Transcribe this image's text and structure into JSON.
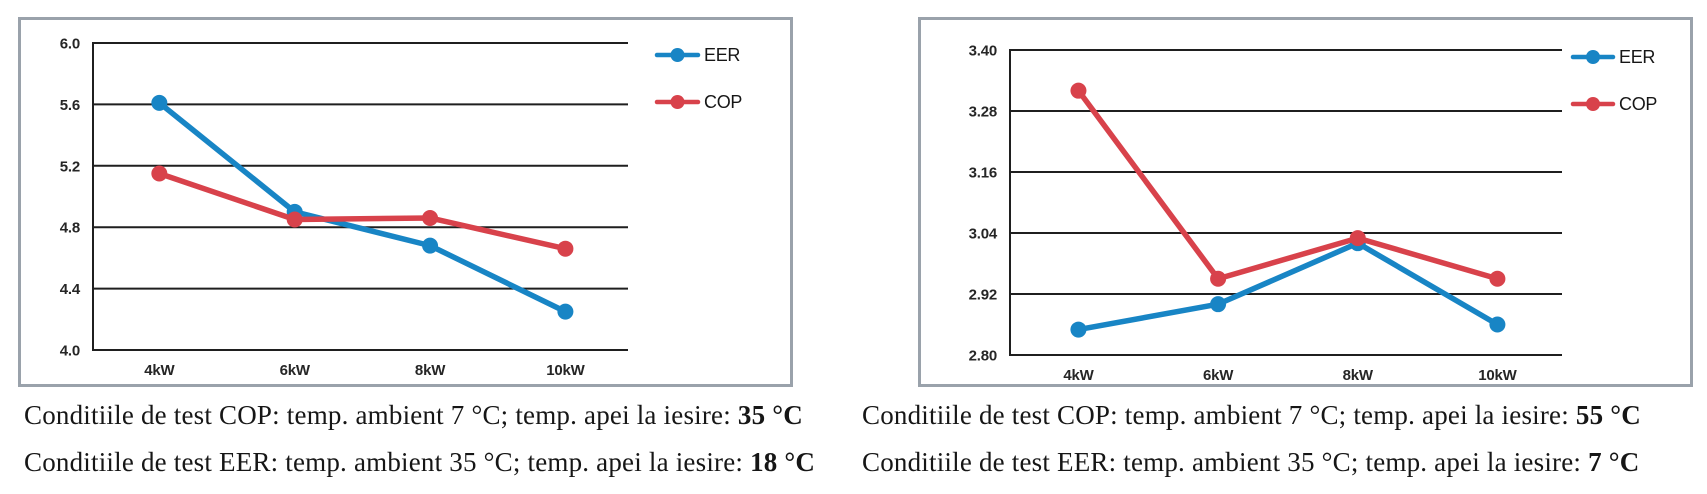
{
  "figure": {
    "background": "#ffffff",
    "panel_border_color": "#9aa2ab"
  },
  "colors": {
    "eer_series": "#1885c5",
    "cop_series": "#d8424b",
    "grid_line": "#1f1f1f",
    "tick_text": "#262626",
    "caption_text": "#161616"
  },
  "chart_data": [
    {
      "type": "line",
      "title": "",
      "xlabel": "",
      "ylabel": "",
      "categories": [
        "4kW",
        "6kW",
        "8kW",
        "10kW"
      ],
      "ylim": [
        4.0,
        6.0
      ],
      "y_tick_labels": [
        "6.0",
        "5.6",
        "5.2",
        "4.8",
        "4.4",
        "4.0"
      ],
      "grid": true,
      "legend_position": "top-right-outside",
      "series": [
        {
          "name": "EER",
          "color": "#1885c5",
          "values": [
            5.61,
            4.9,
            4.68,
            4.25
          ]
        },
        {
          "name": "COP",
          "color": "#d8424b",
          "values": [
            5.15,
            4.85,
            4.86,
            4.66
          ]
        }
      ]
    },
    {
      "type": "line",
      "title": "",
      "xlabel": "",
      "ylabel": "",
      "categories": [
        "4kW",
        "6kW",
        "8kW",
        "10kW"
      ],
      "ylim": [
        2.8,
        3.4
      ],
      "y_tick_labels": [
        "3.40",
        "3.28",
        "3.16",
        "3.04",
        "2.92",
        "2.80"
      ],
      "grid": true,
      "legend_position": "top-right-outside",
      "series": [
        {
          "name": "EER",
          "color": "#1885c5",
          "values": [
            2.85,
            2.9,
            3.02,
            2.86
          ]
        },
        {
          "name": "COP",
          "color": "#d8424b",
          "values": [
            3.32,
            2.95,
            3.03,
            2.95
          ]
        }
      ]
    }
  ],
  "captions": {
    "left": [
      {
        "text": "Conditiile de test COP: temp. ambient 7 °C; temp. apei la iesire: ",
        "bold": "35 °C"
      },
      {
        "text": "Conditiile de test EER: temp. ambient 35 °C; temp. apei la iesire: ",
        "bold": "18 °C"
      }
    ],
    "right": [
      {
        "text": "Conditiile de test COP: temp. ambient 7 °C; temp. apei la iesire: ",
        "bold": "55 °C"
      },
      {
        "text": "Conditiile de test EER: temp. ambient 35 °C; temp. apei la iesire: ",
        "bold": "7 °C"
      }
    ]
  }
}
